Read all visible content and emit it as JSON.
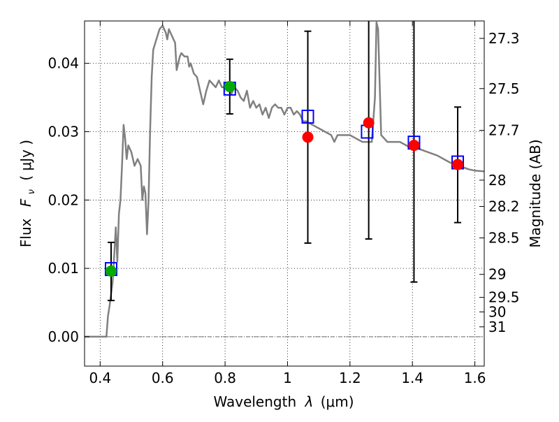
{
  "chart_data": {
    "type": "scatter",
    "xlabel_main": "Wavelength",
    "xlabel_sym": "λ",
    "xlabel_unit": "(μm)",
    "ylabel_main": "Flux",
    "ylabel_sym": "F",
    "ylabel_sub": "ν",
    "ylabel_unit": "( μJy )",
    "y2label": "Magnitude (AB)",
    "xlim": [
      0.35,
      1.63
    ],
    "ylim": [
      -0.0043,
      0.0462
    ],
    "x_ticks": [
      {
        "value": 0.4,
        "label": "0.4"
      },
      {
        "value": 0.6,
        "label": "0.6"
      },
      {
        "value": 0.8,
        "label": "0.8"
      },
      {
        "value": 1.0,
        "label": "1"
      },
      {
        "value": 1.2,
        "label": "1.2"
      },
      {
        "value": 1.4,
        "label": "1.4"
      },
      {
        "value": 1.6,
        "label": "1.6"
      }
    ],
    "y_ticks": [
      {
        "value": 0.0,
        "label": "0.00"
      },
      {
        "value": 0.01,
        "label": "0.01"
      },
      {
        "value": 0.02,
        "label": "0.02"
      },
      {
        "value": 0.03,
        "label": "0.03"
      },
      {
        "value": 0.04,
        "label": "0.04"
      }
    ],
    "mag_ticks": [
      {
        "value": 27.3,
        "label": "27.3"
      },
      {
        "value": 27.5,
        "label": "27.5"
      },
      {
        "value": 27.7,
        "label": "27.7"
      },
      {
        "value": 28.0,
        "label": "28"
      },
      {
        "value": 28.2,
        "label": "28.2"
      },
      {
        "value": 28.5,
        "label": "28.5"
      },
      {
        "value": 29.0,
        "label": "29"
      },
      {
        "value": 29.5,
        "label": "29.5"
      },
      {
        "value": 30.0,
        "label": "30"
      },
      {
        "value": 31.0,
        "label": "31"
      }
    ],
    "model_spectrum": [
      [
        0.35,
        0.0
      ],
      [
        0.41,
        0.0
      ],
      [
        0.42,
        0.0
      ],
      [
        0.425,
        0.003
      ],
      [
        0.43,
        0.0045
      ],
      [
        0.44,
        0.008
      ],
      [
        0.445,
        0.012
      ],
      [
        0.45,
        0.016
      ],
      [
        0.455,
        0.011
      ],
      [
        0.46,
        0.018
      ],
      [
        0.465,
        0.02
      ],
      [
        0.47,
        0.025
      ],
      [
        0.475,
        0.031
      ],
      [
        0.48,
        0.029
      ],
      [
        0.485,
        0.026
      ],
      [
        0.49,
        0.028
      ],
      [
        0.5,
        0.027
      ],
      [
        0.51,
        0.025
      ],
      [
        0.52,
        0.026
      ],
      [
        0.53,
        0.025
      ],
      [
        0.535,
        0.02
      ],
      [
        0.54,
        0.022
      ],
      [
        0.545,
        0.021
      ],
      [
        0.55,
        0.015
      ],
      [
        0.555,
        0.02
      ],
      [
        0.56,
        0.03
      ],
      [
        0.565,
        0.038
      ],
      [
        0.57,
        0.042
      ],
      [
        0.58,
        0.0435
      ],
      [
        0.59,
        0.045
      ],
      [
        0.6,
        0.0455
      ],
      [
        0.61,
        0.0445
      ],
      [
        0.615,
        0.0435
      ],
      [
        0.62,
        0.045
      ],
      [
        0.63,
        0.044
      ],
      [
        0.64,
        0.043
      ],
      [
        0.645,
        0.039
      ],
      [
        0.655,
        0.041
      ],
      [
        0.66,
        0.0415
      ],
      [
        0.67,
        0.041
      ],
      [
        0.68,
        0.041
      ],
      [
        0.685,
        0.0395
      ],
      [
        0.69,
        0.04
      ],
      [
        0.7,
        0.0385
      ],
      [
        0.71,
        0.038
      ],
      [
        0.72,
        0.036
      ],
      [
        0.73,
        0.034
      ],
      [
        0.74,
        0.036
      ],
      [
        0.75,
        0.0375
      ],
      [
        0.76,
        0.037
      ],
      [
        0.77,
        0.0365
      ],
      [
        0.78,
        0.0375
      ],
      [
        0.79,
        0.0365
      ],
      [
        0.8,
        0.0365
      ],
      [
        0.81,
        0.037
      ],
      [
        0.82,
        0.0355
      ],
      [
        0.83,
        0.0365
      ],
      [
        0.84,
        0.036
      ],
      [
        0.85,
        0.035
      ],
      [
        0.86,
        0.0345
      ],
      [
        0.87,
        0.036
      ],
      [
        0.88,
        0.0335
      ],
      [
        0.89,
        0.0345
      ],
      [
        0.9,
        0.0335
      ],
      [
        0.91,
        0.034
      ],
      [
        0.92,
        0.0325
      ],
      [
        0.93,
        0.0335
      ],
      [
        0.94,
        0.032
      ],
      [
        0.95,
        0.0335
      ],
      [
        0.96,
        0.034
      ],
      [
        0.97,
        0.0335
      ],
      [
        0.98,
        0.0335
      ],
      [
        0.99,
        0.0325
      ],
      [
        1.0,
        0.0335
      ],
      [
        1.01,
        0.0335
      ],
      [
        1.02,
        0.0325
      ],
      [
        1.03,
        0.033
      ],
      [
        1.04,
        0.0325
      ],
      [
        1.05,
        0.0315
      ],
      [
        1.06,
        0.0315
      ],
      [
        1.08,
        0.031
      ],
      [
        1.1,
        0.0305
      ],
      [
        1.12,
        0.03
      ],
      [
        1.14,
        0.0295
      ],
      [
        1.15,
        0.0285
      ],
      [
        1.16,
        0.0295
      ],
      [
        1.18,
        0.0295
      ],
      [
        1.2,
        0.0295
      ],
      [
        1.22,
        0.029
      ],
      [
        1.24,
        0.0285
      ],
      [
        1.26,
        0.0285
      ],
      [
        1.27,
        0.0285
      ],
      [
        1.28,
        0.035
      ],
      [
        1.285,
        0.046
      ],
      [
        1.29,
        0.045
      ],
      [
        1.3,
        0.0295
      ],
      [
        1.32,
        0.0285
      ],
      [
        1.34,
        0.0285
      ],
      [
        1.36,
        0.0285
      ],
      [
        1.38,
        0.028
      ],
      [
        1.4,
        0.0275
      ],
      [
        1.42,
        0.0275
      ],
      [
        1.45,
        0.027
      ],
      [
        1.48,
        0.0265
      ],
      [
        1.5,
        0.026
      ],
      [
        1.52,
        0.0255
      ],
      [
        1.55,
        0.025
      ],
      [
        1.58,
        0.0245
      ],
      [
        1.6,
        0.0243
      ],
      [
        1.63,
        0.0242
      ]
    ],
    "model_points": [
      {
        "x": 0.435,
        "y": 0.0099
      },
      {
        "x": 0.815,
        "y": 0.0363
      },
      {
        "x": 1.065,
        "y": 0.0322
      },
      {
        "x": 1.255,
        "y": 0.03
      },
      {
        "x": 1.405,
        "y": 0.0284
      },
      {
        "x": 1.545,
        "y": 0.0255
      }
    ],
    "detections": [
      {
        "x": 0.435,
        "y": 0.0096,
        "err_low": 0.0053,
        "err_high": 0.0138
      },
      {
        "x": 0.815,
        "y": 0.0366,
        "err_low": 0.0326,
        "err_high": 0.0406
      }
    ],
    "measurements": [
      {
        "x": 1.065,
        "y": 0.0292,
        "err_low": 0.0137,
        "err_high": 0.0447
      },
      {
        "x": 1.26,
        "y": 0.0313,
        "err_low": 0.0143,
        "err_high": 0.0462
      },
      {
        "x": 1.405,
        "y": 0.028,
        "err_low": 0.008,
        "err_high": 0.0462
      },
      {
        "x": 1.545,
        "y": 0.0252,
        "err_low": 0.0167,
        "err_high": 0.0336
      }
    ]
  },
  "colors": {
    "spectrum": "#808080",
    "model_box": "#0000ff",
    "detection": "#00aa00",
    "measurement": "#ff0000",
    "errorbar": "#000000",
    "grid": "#000000"
  }
}
